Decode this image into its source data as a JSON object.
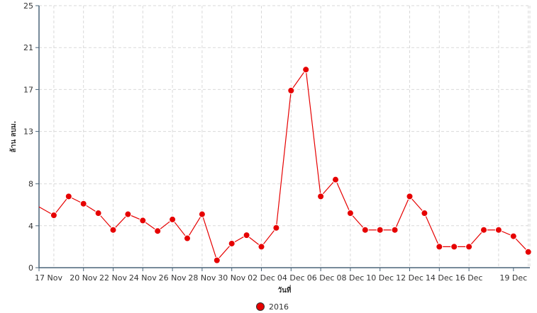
{
  "chart_data": {
    "type": "line",
    "xlabel": "วันที่",
    "ylabel": "ล้าน ลบม.",
    "ylim": [
      0,
      25
    ],
    "y_ticks": [
      0,
      4,
      8,
      13,
      17,
      21,
      25
    ],
    "x_tick_labels": [
      "17 Nov",
      "20 Nov",
      "22 Nov",
      "24 Nov",
      "26 Nov",
      "28 Nov",
      "30 Nov",
      "02 Dec",
      "04 Dec",
      "06 Dec",
      "08 Dec",
      "10 Dec",
      "12 Dec",
      "14 Dec",
      "16 Dec",
      "19 Dec"
    ],
    "grid": true,
    "legend_position": "bottom",
    "series": [
      {
        "name": "2016",
        "color": "#e60000",
        "values": [
          5.8,
          5.0,
          6.8,
          6.1,
          5.2,
          3.6,
          5.1,
          4.5,
          3.5,
          4.6,
          2.8,
          5.1,
          0.7,
          2.3,
          3.1,
          2.0,
          3.8,
          16.9,
          18.9,
          6.8,
          8.4,
          5.2,
          3.6,
          3.6,
          3.6,
          6.8,
          5.2,
          2.0,
          2.0,
          2.0,
          3.6,
          3.6,
          3.0,
          1.5
        ]
      }
    ]
  }
}
